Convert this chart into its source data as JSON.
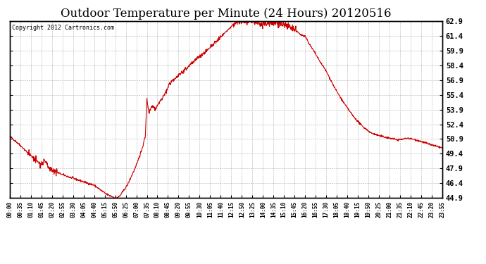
{
  "title": "Outdoor Temperature per Minute (24 Hours) 20120516",
  "copyright_text": "Copyright 2012 Cartronics.com",
  "line_color": "#cc0000",
  "background_color": "#ffffff",
  "grid_color": "#b0b0b0",
  "title_fontsize": 12,
  "ylim": [
    44.9,
    62.9
  ],
  "yticks": [
    44.9,
    46.4,
    47.9,
    49.4,
    50.9,
    52.4,
    53.9,
    55.4,
    56.9,
    58.4,
    59.9,
    61.4,
    62.9
  ],
  "xtick_interval_minutes": 35
}
